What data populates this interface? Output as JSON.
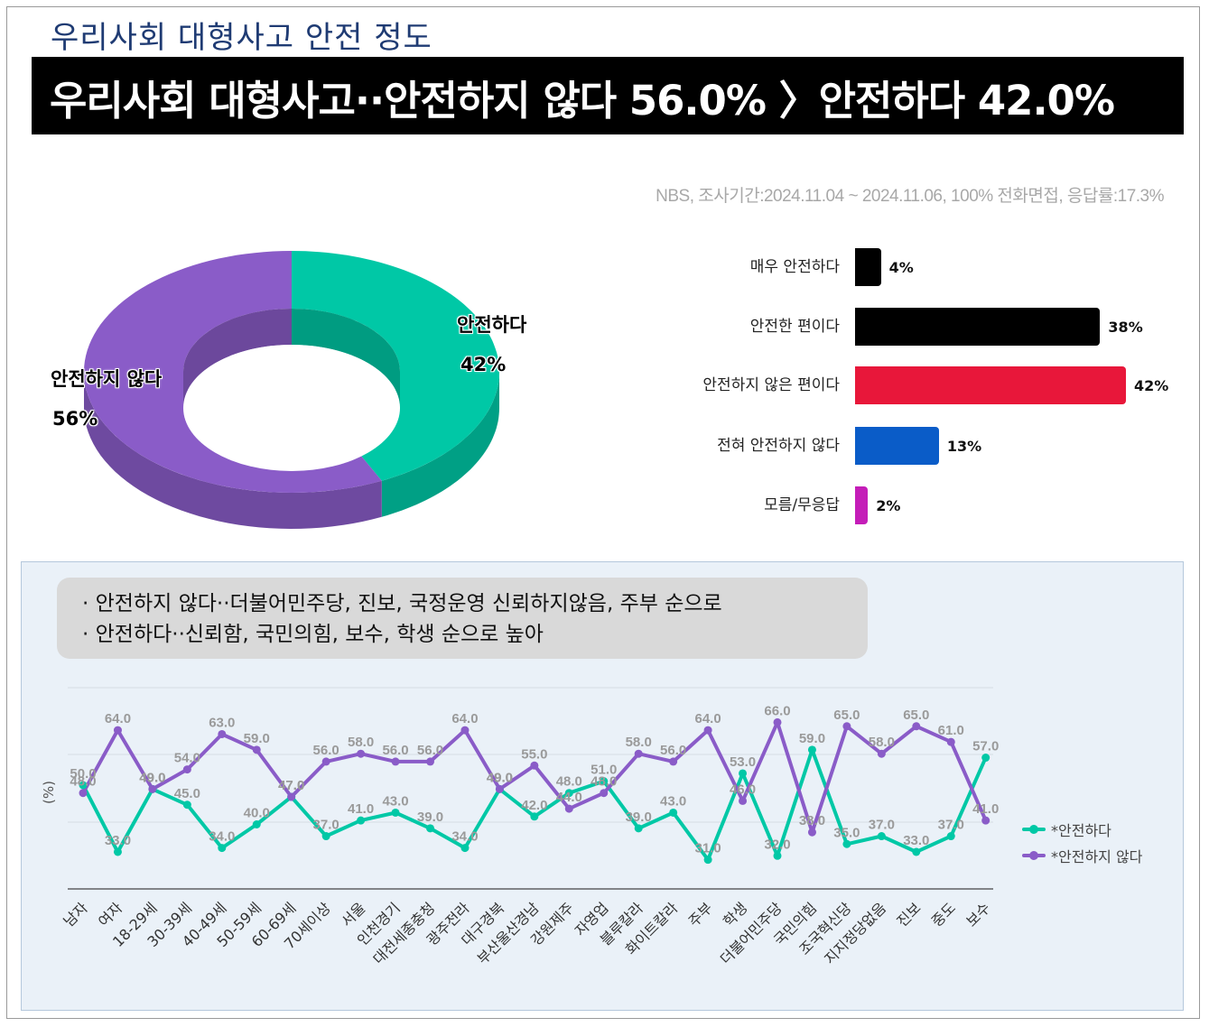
{
  "subtitle": "우리사회 대형사고 안전 정도",
  "headline": "우리사회 대형사고··안전하지 않다 56.0% 〉안전하다 42.0%",
  "source": "NBS, 조사기간:2024.11.04 ~ 2024.11.06, 100% 전화면접, 응답률:17.3%",
  "colors": {
    "safe": "#00c8a6",
    "unsafe": "#8a5cc8",
    "very_safe": "#000000",
    "somewhat_safe": "#000000",
    "somewhat_unsafe": "#e8173a",
    "not_safe_at_all": "#0a5cc8",
    "dont_know": "#c41db8"
  },
  "notes": [
    "· 안전하지 않다··더불어민주당, 진보, 국정운영 신뢰하지않음, 주부 순으로",
    "· 안전하다··신뢰함, 국민의힘, 보수, 학생 순으로 높아"
  ],
  "chart_data": [
    {
      "type": "pie",
      "style": "donut-3d",
      "labels": [
        "안전하다",
        "안전하지 않다"
      ],
      "values": [
        42,
        56
      ],
      "value_labels": [
        "42%",
        "56%"
      ]
    },
    {
      "type": "bar",
      "orientation": "horizontal",
      "categories": [
        "매우 안전하다",
        "안전한 편이다",
        "안전하지 않은 편이다",
        "전혀 안전하지 않다",
        "모름/무응답"
      ],
      "values": [
        4,
        38,
        42,
        13,
        2
      ],
      "value_labels": [
        "4%",
        "38%",
        "42%",
        "13%",
        "2%"
      ]
    },
    {
      "type": "line",
      "ylabel": "(%)",
      "categories": [
        "남자",
        "여자",
        "18-29세",
        "30-39세",
        "40-49세",
        "50-59세",
        "60-69세",
        "70세이상",
        "서울",
        "인천경기",
        "대전세종충청",
        "광주전라",
        "대구경북",
        "부산울산경남",
        "강원제주",
        "자영업",
        "블루칼라",
        "화이트칼라",
        "주부",
        "학생",
        "더불어민주당",
        "국민의힘",
        "조국혁신당",
        "지지정당없음",
        "진보",
        "중도",
        "보수"
      ],
      "series": [
        {
          "name": "*안전하다",
          "values": [
            50,
            33,
            49,
            45,
            34,
            40,
            47,
            37,
            41,
            43,
            39,
            34,
            49,
            42,
            48,
            51,
            39,
            43,
            31,
            53,
            32,
            59,
            35,
            37,
            33,
            37,
            57
          ]
        },
        {
          "name": "*안전하지 않다",
          "values": [
            48,
            64,
            49,
            54,
            63,
            59,
            47,
            56,
            58,
            56,
            56,
            64,
            49,
            55,
            44,
            48,
            58,
            56,
            64,
            46,
            66,
            38,
            65,
            58,
            65,
            61,
            41
          ]
        }
      ]
    }
  ]
}
